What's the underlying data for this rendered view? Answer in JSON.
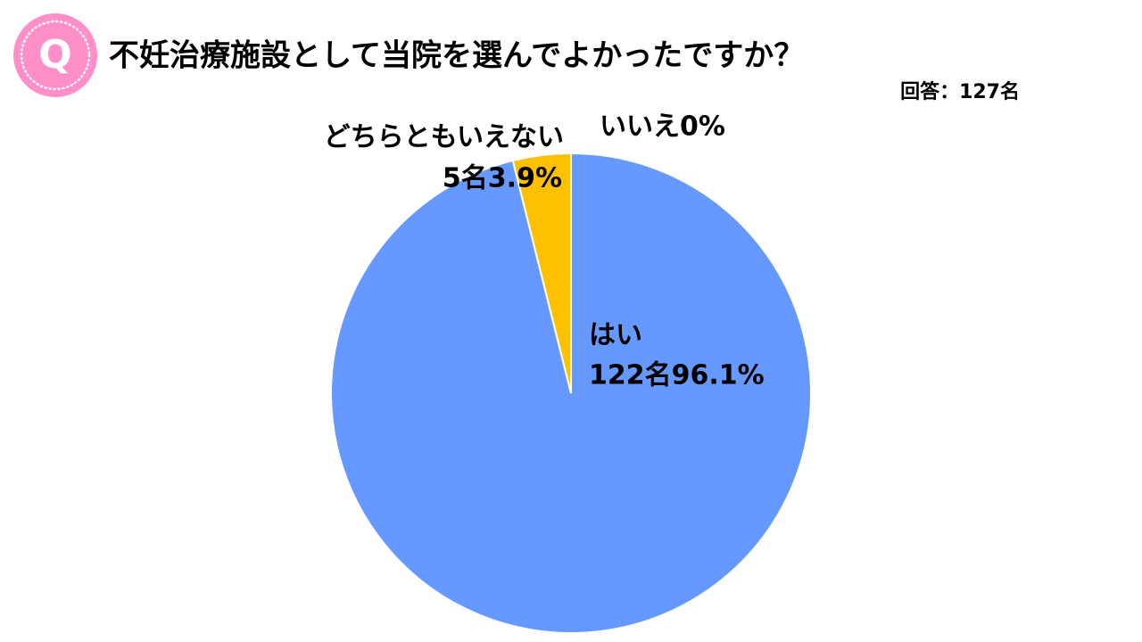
{
  "icon": "Q",
  "chart_data": {
    "type": "pie",
    "title": "不妊治療施設として当院を選んでよかったですか？",
    "subtitle": "回答：127名",
    "categories": [
      "はい",
      "どちらともいえない",
      "いいえ"
    ],
    "values": [
      96.1,
      3.9,
      0
    ],
    "value_labels": [
      "122名96.1%",
      "5名3.9%",
      "0%"
    ],
    "colors": [
      "#6699ff",
      "#ffc000",
      "#a5a5a5"
    ]
  }
}
